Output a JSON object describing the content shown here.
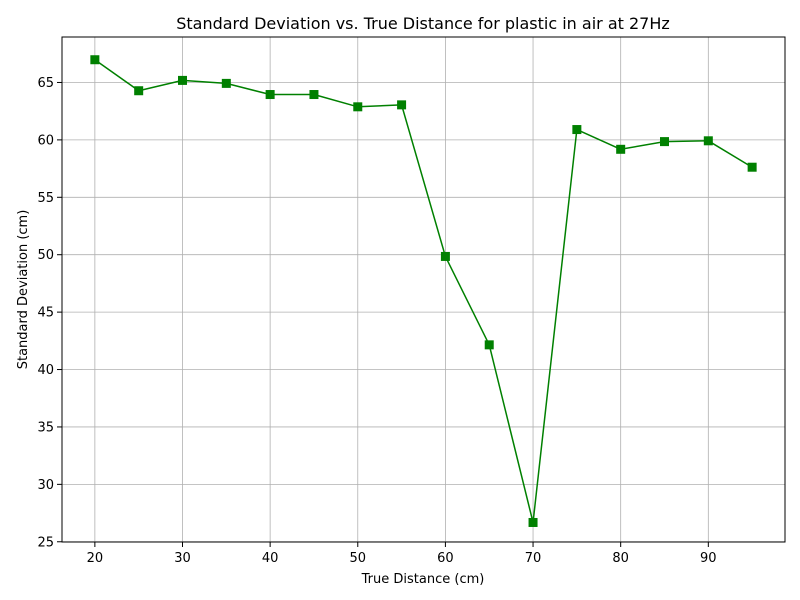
{
  "chart_data": {
    "type": "line",
    "title": "Standard Deviation vs. True Distance for plastic in air at 27Hz",
    "xlabel": "True Distance (cm)",
    "ylabel": "Standard Deviation (cm)",
    "xlim": [
      16.25,
      98.75
    ],
    "ylim": [
      24.98,
      68.96
    ],
    "xticks": [
      20,
      30,
      40,
      50,
      60,
      70,
      80,
      90
    ],
    "yticks": [
      25,
      30,
      35,
      40,
      45,
      50,
      55,
      60,
      65
    ],
    "grid": true,
    "series": [
      {
        "color": "#008000",
        "marker": "square",
        "points": [
          {
            "x": 20,
            "y": 66.98
          },
          {
            "x": 25,
            "y": 64.28
          },
          {
            "x": 30,
            "y": 65.18
          },
          {
            "x": 35,
            "y": 64.92
          },
          {
            "x": 40,
            "y": 63.95
          },
          {
            "x": 45,
            "y": 63.95
          },
          {
            "x": 50,
            "y": 62.88
          },
          {
            "x": 55,
            "y": 63.05
          },
          {
            "x": 60,
            "y": 49.85
          },
          {
            "x": 65,
            "y": 42.15
          },
          {
            "x": 70,
            "y": 26.68
          },
          {
            "x": 75,
            "y": 60.9
          },
          {
            "x": 80,
            "y": 59.18
          },
          {
            "x": 85,
            "y": 59.85
          },
          {
            "x": 90,
            "y": 59.92
          },
          {
            "x": 95,
            "y": 57.62
          }
        ]
      }
    ]
  }
}
